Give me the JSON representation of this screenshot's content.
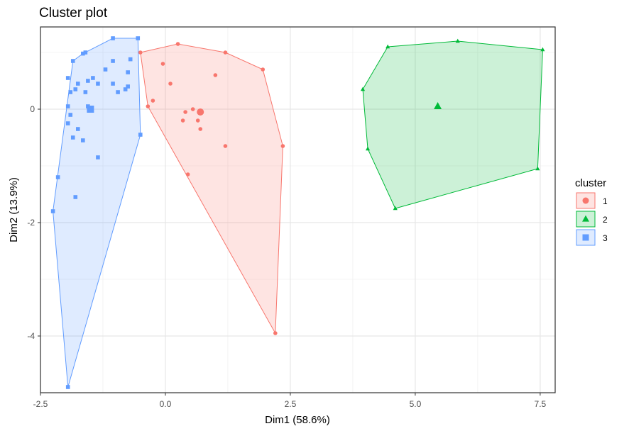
{
  "chart_data": {
    "type": "scatter",
    "title": "Cluster plot",
    "xlabel": "Dim1 (58.6%)",
    "ylabel": "Dim2 (13.9%)",
    "xlim": [
      -2.5,
      7.8
    ],
    "ylim": [
      -5.0,
      1.45
    ],
    "x_ticks": [
      -2.5,
      0.0,
      2.5,
      5.0,
      7.5
    ],
    "x_tick_labels": [
      "-2.5",
      "0.0",
      "2.5",
      "5.0",
      "7.5"
    ],
    "y_ticks": [
      -4,
      -2,
      0
    ],
    "y_tick_labels": [
      "-4",
      "-2",
      "0"
    ],
    "grid": true,
    "legend": {
      "title": "cluster",
      "position": "right"
    },
    "series": [
      {
        "name": "1",
        "color": "#F8766D",
        "fill": "#F8766D",
        "shape": "circle",
        "points": [
          [
            -0.5,
            1.0
          ],
          [
            0.25,
            1.15
          ],
          [
            1.2,
            1.0
          ],
          [
            1.95,
            0.7
          ],
          [
            -0.05,
            0.8
          ],
          [
            1.0,
            0.6
          ],
          [
            0.1,
            0.45
          ],
          [
            -0.25,
            0.15
          ],
          [
            -0.35,
            0.05
          ],
          [
            0.55,
            0.0
          ],
          [
            0.4,
            -0.05
          ],
          [
            0.7,
            -0.05
          ],
          [
            0.65,
            -0.2
          ],
          [
            0.35,
            -0.2
          ],
          [
            0.7,
            -0.35
          ],
          [
            1.2,
            -0.65
          ],
          [
            2.35,
            -0.65
          ],
          [
            0.45,
            -1.15
          ],
          [
            2.2,
            -3.95
          ]
        ],
        "hull": [
          [
            -0.5,
            1.0
          ],
          [
            0.25,
            1.15
          ],
          [
            1.2,
            1.0
          ],
          [
            1.95,
            0.7
          ],
          [
            2.35,
            -0.65
          ],
          [
            2.2,
            -3.95
          ],
          [
            -0.35,
            0.05
          ]
        ],
        "center": [
          0.7,
          -0.05
        ]
      },
      {
        "name": "2",
        "color": "#00BA38",
        "fill": "#00BA38",
        "shape": "triangle",
        "points": [
          [
            4.45,
            1.1
          ],
          [
            5.85,
            1.2
          ],
          [
            7.55,
            1.05
          ],
          [
            3.95,
            0.35
          ],
          [
            4.05,
            -0.7
          ],
          [
            7.45,
            -1.05
          ],
          [
            4.6,
            -1.75
          ]
        ],
        "hull": [
          [
            4.45,
            1.1
          ],
          [
            5.85,
            1.2
          ],
          [
            7.55,
            1.05
          ],
          [
            7.45,
            -1.05
          ],
          [
            4.6,
            -1.75
          ],
          [
            4.05,
            -0.7
          ],
          [
            3.95,
            0.35
          ]
        ],
        "center": [
          5.45,
          0.05
        ]
      },
      {
        "name": "3",
        "color": "#619CFF",
        "fill": "#619CFF",
        "shape": "square",
        "points": [
          [
            -1.05,
            1.25
          ],
          [
            -0.55,
            1.25
          ],
          [
            -1.6,
            1.0
          ],
          [
            -1.65,
            0.98
          ],
          [
            -1.85,
            0.85
          ],
          [
            -1.05,
            0.85
          ],
          [
            -0.7,
            0.88
          ],
          [
            -1.2,
            0.7
          ],
          [
            -0.75,
            0.65
          ],
          [
            -1.95,
            0.55
          ],
          [
            -1.45,
            0.55
          ],
          [
            -1.55,
            0.5
          ],
          [
            -1.75,
            0.45
          ],
          [
            -1.05,
            0.45
          ],
          [
            -1.35,
            0.45
          ],
          [
            -0.75,
            0.4
          ],
          [
            -1.8,
            0.35
          ],
          [
            -1.6,
            0.3
          ],
          [
            -1.9,
            0.3
          ],
          [
            -0.8,
            0.35
          ],
          [
            -0.95,
            0.3
          ],
          [
            -1.55,
            0.05
          ],
          [
            -1.5,
            0.0
          ],
          [
            -1.95,
            0.05
          ],
          [
            -1.9,
            -0.1
          ],
          [
            -1.95,
            -0.25
          ],
          [
            -1.75,
            -0.35
          ],
          [
            -1.85,
            -0.5
          ],
          [
            -1.65,
            -0.55
          ],
          [
            -0.5,
            -0.45
          ],
          [
            -1.35,
            -0.85
          ],
          [
            -2.15,
            -1.2
          ],
          [
            -1.8,
            -1.55
          ],
          [
            -2.25,
            -1.8
          ],
          [
            -1.95,
            -4.9
          ]
        ],
        "hull": [
          [
            -1.05,
            1.25
          ],
          [
            -0.55,
            1.25
          ],
          [
            -0.5,
            -0.45
          ],
          [
            -1.95,
            -4.9
          ],
          [
            -2.25,
            -1.8
          ],
          [
            -1.85,
            0.85
          ],
          [
            -1.65,
            0.98
          ]
        ],
        "center": [
          -1.5,
          0.0
        ]
      }
    ]
  }
}
